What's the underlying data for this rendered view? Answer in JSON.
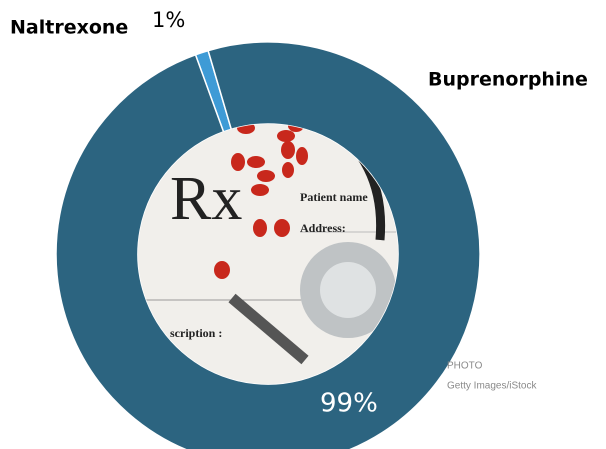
{
  "chart_data": {
    "type": "donut",
    "categories": [
      "Naltrexone",
      "Buprenorphine"
    ],
    "values": [
      1,
      99
    ],
    "value_labels": [
      "1%",
      "99%"
    ],
    "colors": [
      "#3e9bd6",
      "#2c6480"
    ],
    "photo_credit": {
      "label": "PHOTO",
      "source": "Getty Images/iStock"
    }
  },
  "photo": {
    "texts": [
      "Rx",
      "Patient name",
      "Address:",
      "scription :"
    ]
  }
}
